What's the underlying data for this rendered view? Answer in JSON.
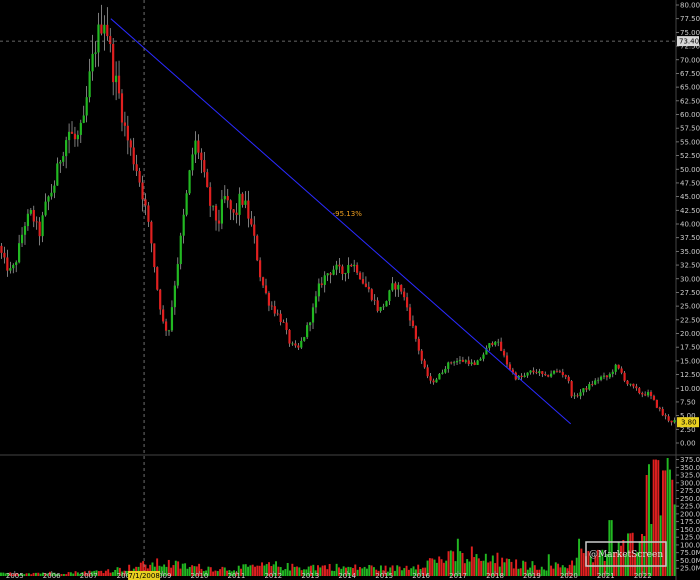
{
  "chart_data": [
    {
      "type": "candlestick",
      "title": "",
      "price_ylim": [
        0,
        80
      ],
      "price_yticks": [
        "80.00",
        "77.50",
        "75.00",
        "72.50",
        "70.00",
        "67.50",
        "65.00",
        "62.50",
        "60.00",
        "57.50",
        "55.00",
        "52.50",
        "50.00",
        "47.50",
        "45.00",
        "42.50",
        "40.00",
        "37.50",
        "35.00",
        "32.50",
        "30.00",
        "27.50",
        "25.00",
        "22.50",
        "20.00",
        "17.50",
        "15.00",
        "12.50",
        "10.00",
        "7.50",
        "5.00",
        "2.50",
        "0.00"
      ],
      "x_range": [
        2004.6,
        2022.9
      ],
      "x_labels": [
        "2005",
        "2006",
        "2007",
        "2008",
        "2009",
        "2010",
        "2011",
        "2012",
        "2013",
        "2014",
        "2015",
        "2016",
        "2017",
        "2018",
        "2019",
        "2020",
        "2021",
        "2022"
      ],
      "crosshair_price_label": "73.40",
      "crosshair_date_label": "7/1/2008",
      "crosshair_price": 73.4,
      "crosshair_x": 2008.5,
      "last_price_label": "3.80",
      "last_price": 3.8,
      "up_color": "#22b822",
      "down_color": "#e02020",
      "price_path": [
        [
          2004.6,
          36
        ],
        [
          2004.75,
          33
        ],
        [
          2004.95,
          31
        ],
        [
          2005.1,
          34
        ],
        [
          2005.3,
          40
        ],
        [
          2005.5,
          42
        ],
        [
          2005.7,
          38
        ],
        [
          2005.9,
          44
        ],
        [
          2006.1,
          47
        ],
        [
          2006.3,
          53
        ],
        [
          2006.5,
          57
        ],
        [
          2006.7,
          55
        ],
        [
          2006.9,
          58
        ],
        [
          2007.05,
          66
        ],
        [
          2007.2,
          72
        ],
        [
          2007.35,
          76
        ],
        [
          2007.45,
          78
        ],
        [
          2007.55,
          75
        ],
        [
          2007.7,
          68
        ],
        [
          2007.85,
          64
        ],
        [
          2008.0,
          58
        ],
        [
          2008.15,
          54
        ],
        [
          2008.35,
          50
        ],
        [
          2008.55,
          44
        ],
        [
          2008.75,
          36
        ],
        [
          2008.9,
          28
        ],
        [
          2009.05,
          22
        ],
        [
          2009.2,
          20
        ],
        [
          2009.35,
          28
        ],
        [
          2009.55,
          38
        ],
        [
          2009.75,
          48
        ],
        [
          2009.9,
          55
        ],
        [
          2010.05,
          53
        ],
        [
          2010.2,
          47
        ],
        [
          2010.35,
          43
        ],
        [
          2010.55,
          40
        ],
        [
          2010.7,
          45
        ],
        [
          2010.85,
          43
        ],
        [
          2011.0,
          41
        ],
        [
          2011.15,
          45
        ],
        [
          2011.3,
          43
        ],
        [
          2011.5,
          38
        ],
        [
          2011.7,
          30
        ],
        [
          2011.9,
          26
        ],
        [
          2012.1,
          24
        ],
        [
          2012.3,
          22
        ],
        [
          2012.5,
          18
        ],
        [
          2012.7,
          17
        ],
        [
          2012.9,
          20
        ],
        [
          2013.1,
          24
        ],
        [
          2013.3,
          29
        ],
        [
          2013.5,
          31
        ],
        [
          2013.7,
          32
        ],
        [
          2013.9,
          31
        ],
        [
          2014.1,
          33
        ],
        [
          2014.3,
          32
        ],
        [
          2014.5,
          29
        ],
        [
          2014.7,
          27
        ],
        [
          2014.9,
          24
        ],
        [
          2015.1,
          26
        ],
        [
          2015.3,
          29
        ],
        [
          2015.5,
          28
        ],
        [
          2015.7,
          24
        ],
        [
          2015.9,
          19
        ],
        [
          2016.1,
          14
        ],
        [
          2016.3,
          11
        ],
        [
          2016.5,
          12
        ],
        [
          2016.7,
          14
        ],
        [
          2016.9,
          15
        ],
        [
          2017.1,
          15
        ],
        [
          2017.3,
          15
        ],
        [
          2017.5,
          14
        ],
        [
          2017.7,
          16
        ],
        [
          2017.9,
          18
        ],
        [
          2018.05,
          19
        ],
        [
          2018.2,
          17
        ],
        [
          2018.4,
          14
        ],
        [
          2018.6,
          12
        ],
        [
          2018.8,
          12
        ],
        [
          2019.0,
          13
        ],
        [
          2019.2,
          13
        ],
        [
          2019.4,
          12
        ],
        [
          2019.6,
          13
        ],
        [
          2019.8,
          13
        ],
        [
          2020.0,
          12
        ],
        [
          2020.15,
          8
        ],
        [
          2020.3,
          9
        ],
        [
          2020.5,
          10
        ],
        [
          2020.7,
          11
        ],
        [
          2020.9,
          12
        ],
        [
          2021.1,
          12
        ],
        [
          2021.3,
          14
        ],
        [
          2021.45,
          13
        ],
        [
          2021.6,
          11
        ],
        [
          2021.8,
          10
        ],
        [
          2022.0,
          9
        ],
        [
          2022.2,
          9
        ],
        [
          2022.4,
          7
        ],
        [
          2022.6,
          5
        ],
        [
          2022.8,
          4
        ]
      ],
      "trendline": {
        "start": [
          2007.6,
          77.5
        ],
        "end": [
          2020.05,
          3.5
        ],
        "label": "-95.13%",
        "label_at": [
          2014.0,
          41.5
        ],
        "color": "#2a2aff"
      }
    },
    {
      "type": "bar",
      "title": "",
      "ylim": [
        0,
        380
      ],
      "y_unit": "M",
      "yticks": [
        "375.0M",
        "350.0M",
        "325.0M",
        "300.0M",
        "275.0M",
        "250.0M",
        "225.0M",
        "200.0M",
        "175.0M",
        "150.0M",
        "125.0M",
        "100.0M",
        "75.0M",
        "50.0M",
        "25.0M"
      ],
      "volume_profile": [
        [
          2004.6,
          8
        ],
        [
          2005.0,
          9
        ],
        [
          2005.5,
          10
        ],
        [
          2006.0,
          10
        ],
        [
          2006.5,
          11
        ],
        [
          2007.0,
          13
        ],
        [
          2007.5,
          18
        ],
        [
          2008.0,
          25
        ],
        [
          2008.5,
          35
        ],
        [
          2009.0,
          42
        ],
        [
          2009.5,
          32
        ],
        [
          2010.0,
          28
        ],
        [
          2010.5,
          24
        ],
        [
          2011.0,
          24
        ],
        [
          2011.5,
          30
        ],
        [
          2012.0,
          34
        ],
        [
          2012.5,
          28
        ],
        [
          2013.0,
          30
        ],
        [
          2013.5,
          30
        ],
        [
          2014.0,
          26
        ],
        [
          2014.5,
          28
        ],
        [
          2015.0,
          24
        ],
        [
          2015.5,
          26
        ],
        [
          2016.0,
          42
        ],
        [
          2016.5,
          55
        ],
        [
          2017.0,
          60
        ],
        [
          2017.5,
          55
        ],
        [
          2018.0,
          45
        ],
        [
          2018.5,
          38
        ],
        [
          2019.0,
          34
        ],
        [
          2019.5,
          30
        ],
        [
          2020.0,
          36
        ],
        [
          2020.3,
          70
        ],
        [
          2020.6,
          55
        ],
        [
          2021.0,
          70
        ],
        [
          2021.4,
          85
        ],
        [
          2021.8,
          120
        ],
        [
          2022.1,
          260
        ],
        [
          2022.4,
          330
        ],
        [
          2022.7,
          300
        ],
        [
          2022.9,
          220
        ]
      ],
      "spikes": [
        [
          2016.95,
          120
        ],
        [
          2017.35,
          95
        ],
        [
          2018.05,
          75
        ],
        [
          2019.45,
          70
        ],
        [
          2020.25,
          120
        ],
        [
          2021.1,
          180
        ],
        [
          2022.15,
          360
        ],
        [
          2022.3,
          375
        ],
        [
          2022.55,
          340
        ],
        [
          2022.75,
          310
        ]
      ]
    }
  ],
  "watermark": {
    "label": "@MarketScreen"
  }
}
